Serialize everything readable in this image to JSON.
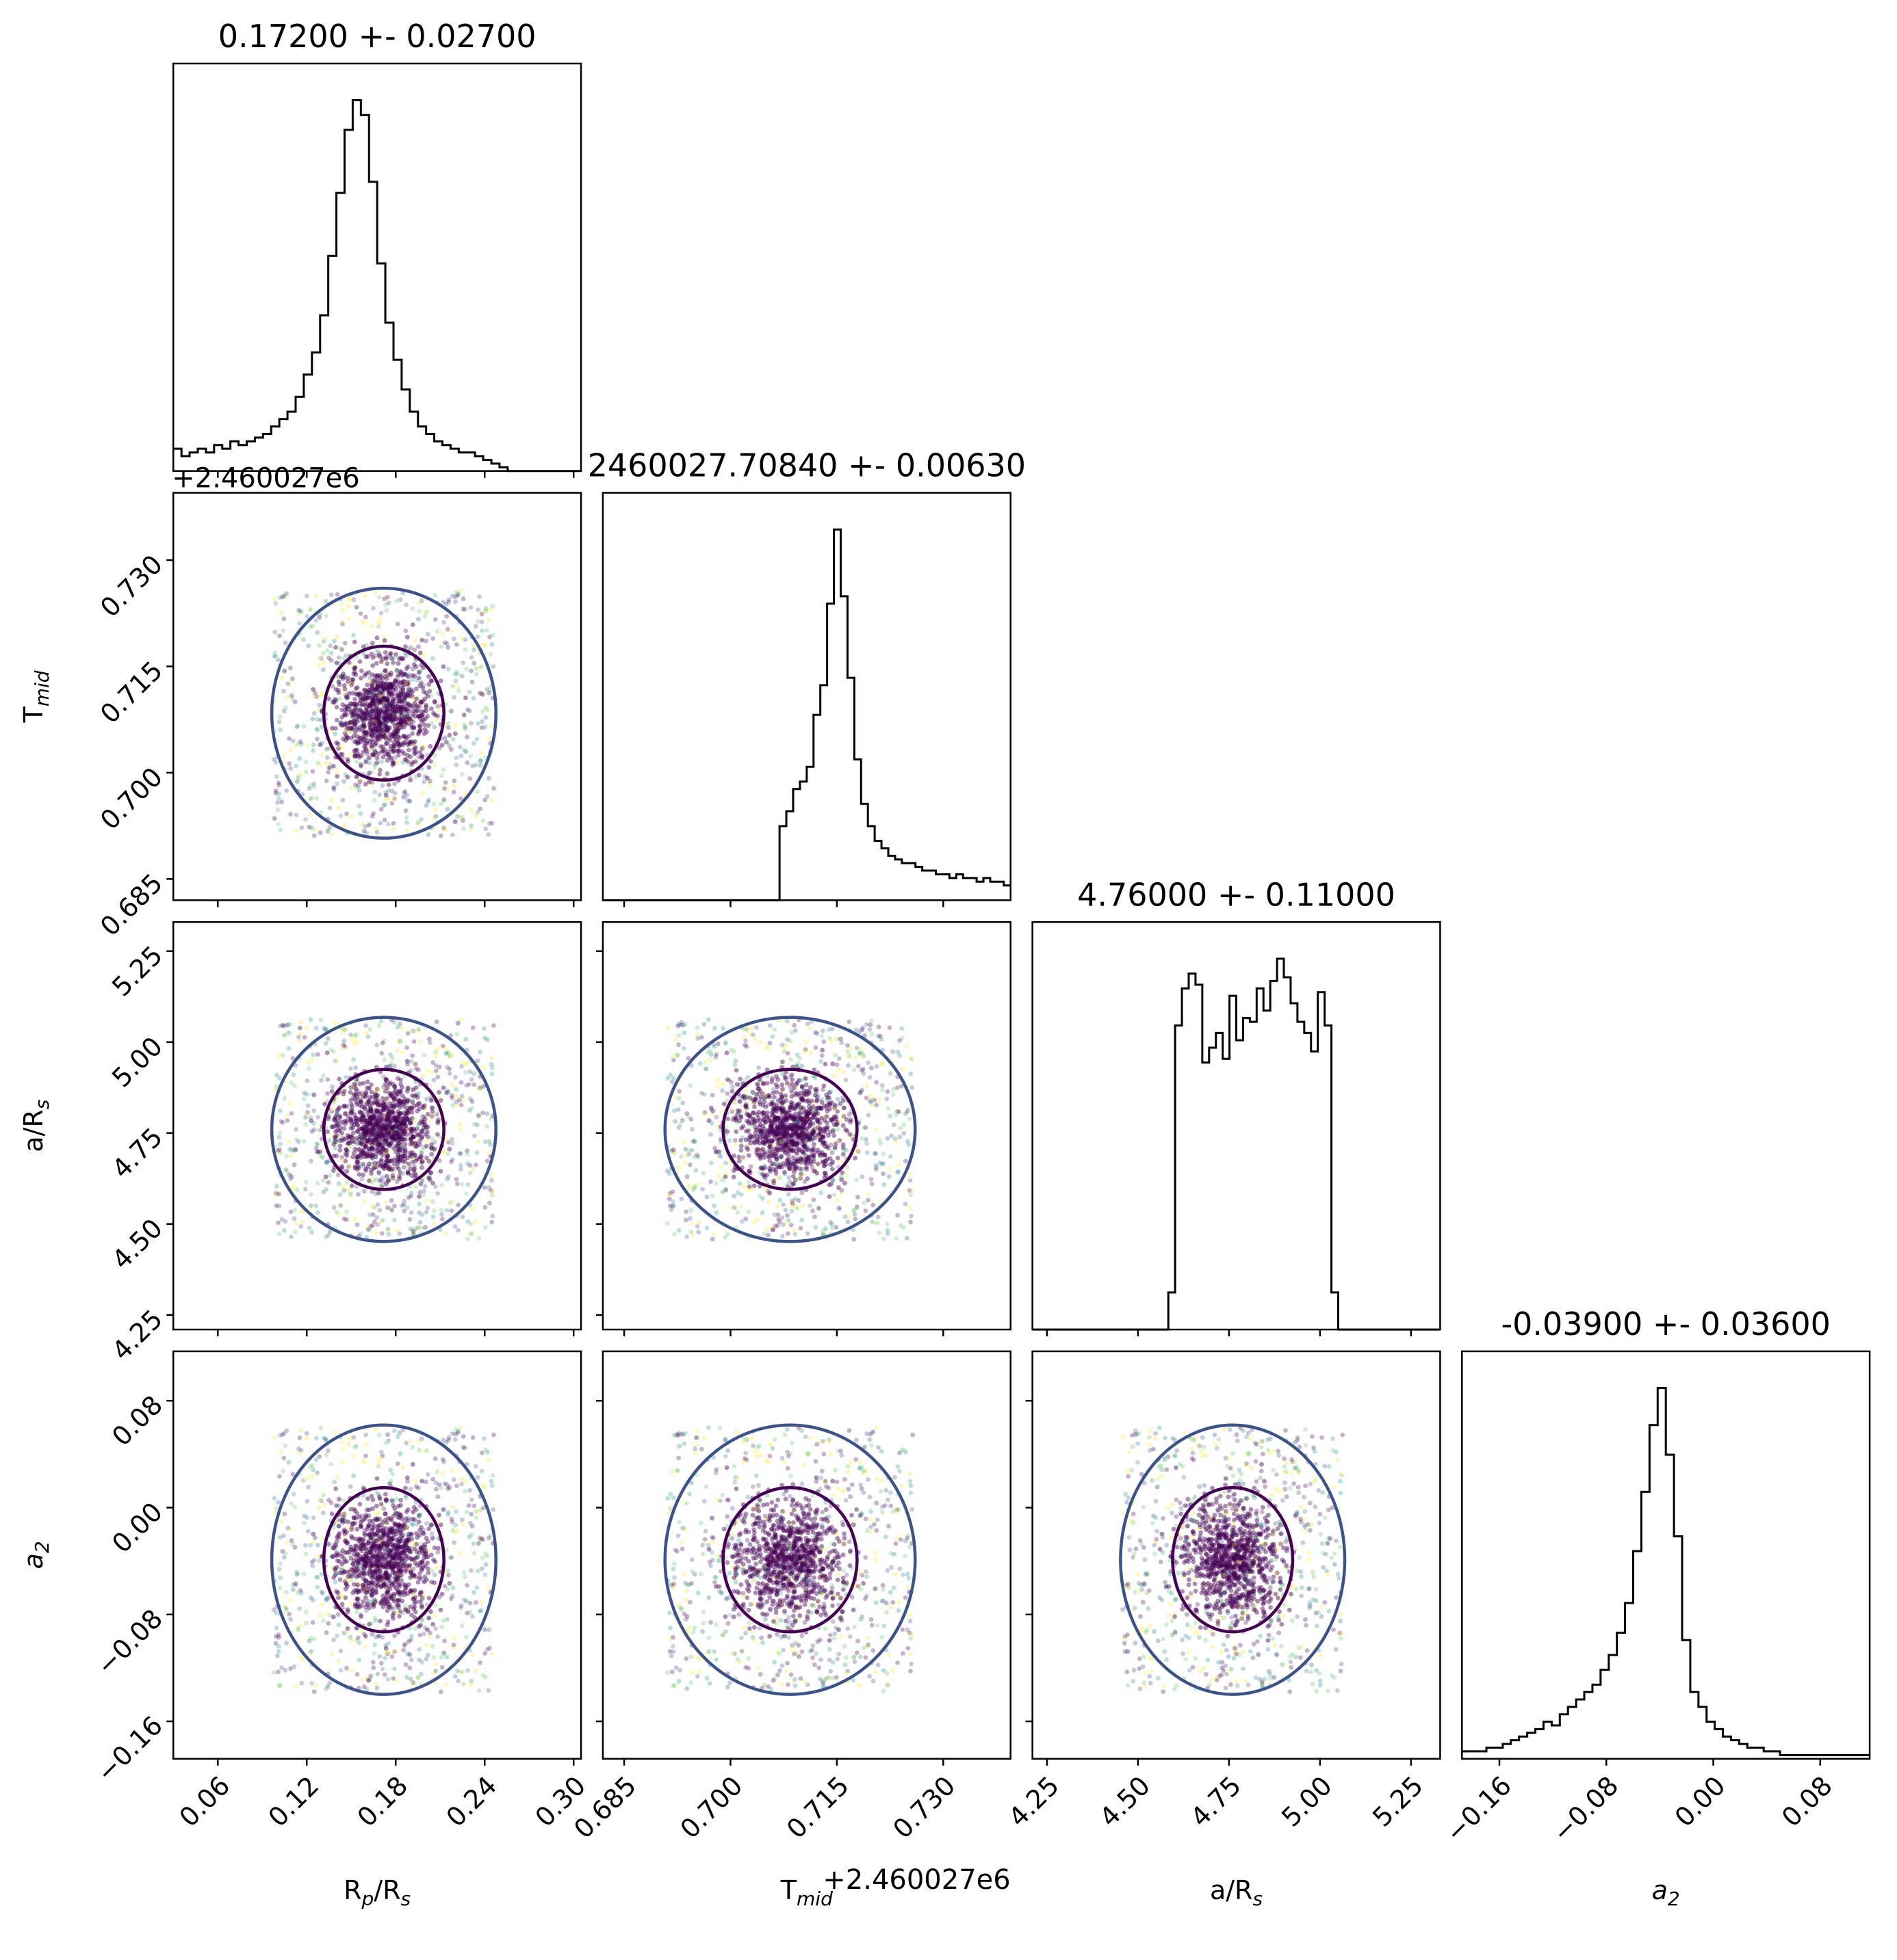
{
  "chart_data": {
    "type": "scatter",
    "plot_kind": "corner",
    "params": [
      {
        "key": "rprs",
        "label_main": "R",
        "label_sub1": "p",
        "label_mid": "/R",
        "label_sub2": "s",
        "title": "0.17200 +- 0.02700",
        "range": [
          0.03,
          0.305
        ],
        "ticks": [
          0.06,
          0.12,
          0.18,
          0.24,
          0.3
        ],
        "tick_labels": [
          "0.06",
          "0.12",
          "0.18",
          "0.24",
          "0.30"
        ],
        "offset": "",
        "mean": 0.172,
        "sd": 0.027
      },
      {
        "key": "tmid",
        "label_main": "T",
        "label_sub1": "mid",
        "label_mid": "",
        "label_sub2": "",
        "title": "2460027.70840 +- 0.00630",
        "range": [
          0.682,
          0.7395
        ],
        "ticks": [
          0.685,
          0.7,
          0.715,
          0.73
        ],
        "tick_labels": [
          "0.685",
          "0.700",
          "0.715",
          "0.730"
        ],
        "offset": "+2.460027e6",
        "mean": 0.7084,
        "sd": 0.0063
      },
      {
        "key": "ars",
        "label_main": "a/R",
        "label_sub1": "",
        "label_mid": "",
        "label_sub2": "s",
        "title": "4.76000 +- 0.11000",
        "range": [
          4.21,
          5.33
        ],
        "ticks": [
          4.25,
          4.5,
          4.75,
          5.0,
          5.25
        ],
        "tick_labels": [
          "4.25",
          "4.50",
          "4.75",
          "5.00",
          "5.25"
        ],
        "offset": "",
        "mean": 4.76,
        "sd": 0.11
      },
      {
        "key": "a2",
        "label_main": "a",
        "label_sub1": "2",
        "label_mid": "",
        "label_sub2": "",
        "title": "-0.03900 +- 0.03600",
        "range": [
          -0.188,
          0.117
        ],
        "ticks": [
          -0.16,
          -0.08,
          0.0,
          0.08
        ],
        "tick_labels": [
          "−0.16",
          "−0.08",
          "0.00",
          "0.08"
        ],
        "offset": "",
        "mean": -0.039,
        "sd": 0.036
      }
    ],
    "histograms": {
      "rprs": {
        "x0": 0.03,
        "x1": 0.305,
        "counts": [
          0.06,
          0.04,
          0.05,
          0.06,
          0.05,
          0.07,
          0.06,
          0.08,
          0.07,
          0.08,
          0.09,
          0.1,
          0.12,
          0.14,
          0.16,
          0.2,
          0.26,
          0.32,
          0.42,
          0.58,
          0.75,
          0.92,
          1.0,
          0.96,
          0.78,
          0.56,
          0.4,
          0.3,
          0.22,
          0.16,
          0.12,
          0.1,
          0.08,
          0.07,
          0.06,
          0.05,
          0.05,
          0.04,
          0.03,
          0.02,
          0.01,
          0,
          0,
          0,
          0,
          0,
          0,
          0,
          0,
          0
        ]
      },
      "tmid": {
        "x0": 0.682,
        "x1": 0.7395,
        "counts": [
          0,
          0,
          0,
          0,
          0,
          0,
          0,
          0,
          0,
          0,
          0,
          0,
          0,
          0,
          0,
          0,
          0,
          0,
          0,
          0,
          0,
          0,
          0,
          0,
          0,
          0,
          0.2,
          0.24,
          0.3,
          0.32,
          0.36,
          0.5,
          0.58,
          0.8,
          1.0,
          0.82,
          0.6,
          0.38,
          0.26,
          0.2,
          0.16,
          0.14,
          0.12,
          0.11,
          0.1,
          0.1,
          0.09,
          0.08,
          0.08,
          0.07,
          0.07,
          0.06,
          0.07,
          0.06,
          0.06,
          0.05,
          0.06,
          0.05,
          0.05,
          0.04
        ]
      },
      "ars": {
        "x0": 4.21,
        "x1": 5.33,
        "counts": [
          0,
          0,
          0,
          0,
          0,
          0,
          0,
          0,
          0,
          0,
          0,
          0,
          0,
          0,
          0,
          0,
          0,
          0,
          0,
          0,
          0.1,
          0.82,
          0.92,
          0.96,
          0.93,
          0.72,
          0.76,
          0.8,
          0.73,
          0.9,
          0.78,
          0.84,
          0.83,
          0.92,
          0.86,
          0.94,
          1.0,
          0.95,
          0.88,
          0.83,
          0.8,
          0.75,
          0.91,
          0.82,
          0.1,
          0,
          0,
          0,
          0,
          0,
          0,
          0,
          0,
          0,
          0,
          0,
          0,
          0,
          0,
          0
        ]
      },
      "a2": {
        "x0": -0.188,
        "x1": 0.117,
        "counts": [
          0.02,
          0.02,
          0.02,
          0.03,
          0.03,
          0.04,
          0.05,
          0.06,
          0.07,
          0.08,
          0.1,
          0.09,
          0.12,
          0.14,
          0.16,
          0.18,
          0.2,
          0.24,
          0.28,
          0.34,
          0.42,
          0.56,
          0.72,
          0.9,
          1.0,
          0.82,
          0.6,
          0.32,
          0.18,
          0.14,
          0.1,
          0.08,
          0.06,
          0.05,
          0.04,
          0.03,
          0.03,
          0.02,
          0.02,
          0.01,
          0.01,
          0.01,
          0.01,
          0.01,
          0.01,
          0.01,
          0.01,
          0.01,
          0.01,
          0.01
        ]
      }
    },
    "contour_levels": 2,
    "colormap": [
      "#440154",
      "#3b528b",
      "#21918c",
      "#5ec962",
      "#fde725"
    ],
    "contour_colors": {
      "inner": "#440154",
      "outer": "#3b528b"
    },
    "histogram_color": "#000000"
  }
}
